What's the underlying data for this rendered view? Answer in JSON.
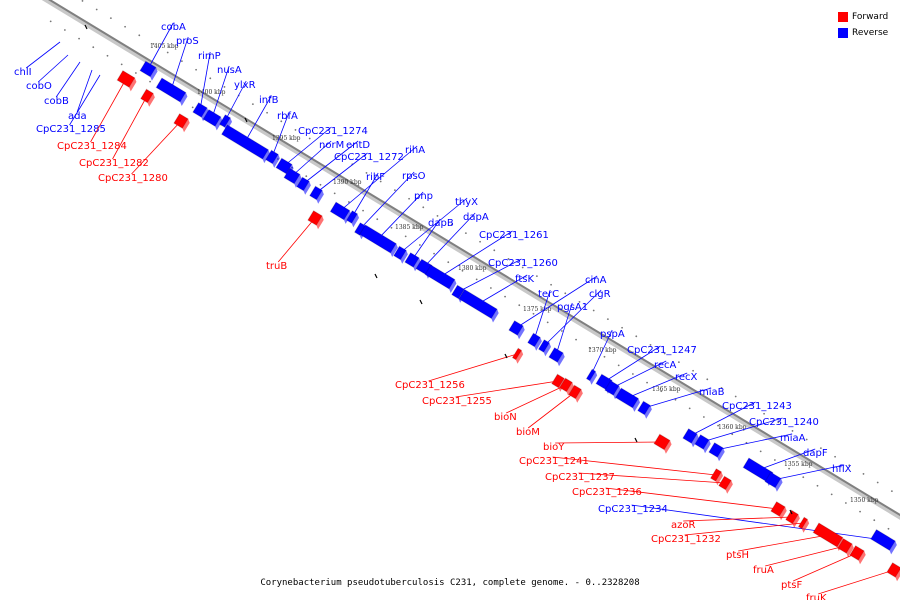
{
  "caption": "Corynebacterium pseudotuberculosis C231, complete genome. - 0..2328208",
  "legend": [
    {
      "label": "Forward",
      "color": "#ff0000"
    },
    {
      "label": "Reverse",
      "color": "#0000ff"
    }
  ],
  "colors": {
    "forward": "#ff0000",
    "reverse": "#0000ff",
    "backbone": "#888888"
  },
  "ticks": [
    "1405 kbp",
    "1400 kbp",
    "1395 kbp",
    "1390 kbp",
    "1385 kbp",
    "1380 kbp",
    "1375 kbp",
    "1370 kbp",
    "1365 kbp",
    "1360 kbp",
    "1355 kbp",
    "1350 kbp"
  ],
  "genes": [
    {
      "name": "cobA",
      "strand": "reverse"
    },
    {
      "name": "proS",
      "strand": "reverse"
    },
    {
      "name": "chlI",
      "strand": "reverse"
    },
    {
      "name": "rimP",
      "strand": "reverse"
    },
    {
      "name": "cobO",
      "strand": "reverse"
    },
    {
      "name": "nusA",
      "strand": "reverse"
    },
    {
      "name": "cobB",
      "strand": "reverse"
    },
    {
      "name": "ylxR",
      "strand": "reverse"
    },
    {
      "name": "ada",
      "strand": "reverse"
    },
    {
      "name": "infB",
      "strand": "reverse"
    },
    {
      "name": "CpC231_1285",
      "strand": "reverse"
    },
    {
      "name": "rbfA",
      "strand": "reverse"
    },
    {
      "name": "CpC231_1284",
      "strand": "forward"
    },
    {
      "name": "CpC231_1274",
      "strand": "reverse"
    },
    {
      "name": "CpC231_1282",
      "strand": "forward"
    },
    {
      "name": "norM",
      "strand": "reverse"
    },
    {
      "name": "entD",
      "strand": "reverse"
    },
    {
      "name": "CpC231_1280",
      "strand": "forward"
    },
    {
      "name": "CpC231_1272",
      "strand": "reverse"
    },
    {
      "name": "rihA",
      "strand": "reverse"
    },
    {
      "name": "ribF",
      "strand": "reverse"
    },
    {
      "name": "rpsO",
      "strand": "reverse"
    },
    {
      "name": "pnp",
      "strand": "reverse"
    },
    {
      "name": "thyX",
      "strand": "reverse"
    },
    {
      "name": "dapB",
      "strand": "reverse"
    },
    {
      "name": "dapA",
      "strand": "reverse"
    },
    {
      "name": "truB",
      "strand": "forward"
    },
    {
      "name": "CpC231_1261",
      "strand": "reverse"
    },
    {
      "name": "CpC231_1260",
      "strand": "reverse"
    },
    {
      "name": "ftsK",
      "strand": "reverse"
    },
    {
      "name": "cinA",
      "strand": "reverse"
    },
    {
      "name": "terC",
      "strand": "reverse"
    },
    {
      "name": "clgR",
      "strand": "reverse"
    },
    {
      "name": "pgsA1",
      "strand": "reverse"
    },
    {
      "name": "pspA",
      "strand": "reverse"
    },
    {
      "name": "CpC231_1247",
      "strand": "reverse"
    },
    {
      "name": "CpC231_1256",
      "strand": "forward"
    },
    {
      "name": "recA",
      "strand": "reverse"
    },
    {
      "name": "CpC231_1255",
      "strand": "forward"
    },
    {
      "name": "recX",
      "strand": "reverse"
    },
    {
      "name": "miaB",
      "strand": "reverse"
    },
    {
      "name": "bioN",
      "strand": "forward"
    },
    {
      "name": "CpC231_1243",
      "strand": "reverse"
    },
    {
      "name": "CpC231_1240",
      "strand": "reverse"
    },
    {
      "name": "bioM",
      "strand": "forward"
    },
    {
      "name": "miaA",
      "strand": "reverse"
    },
    {
      "name": "bioY",
      "strand": "forward"
    },
    {
      "name": "dapF",
      "strand": "reverse"
    },
    {
      "name": "CpC231_1241",
      "strand": "forward"
    },
    {
      "name": "hflX",
      "strand": "reverse"
    },
    {
      "name": "CpC231_1237",
      "strand": "forward"
    },
    {
      "name": "CpC231_1236",
      "strand": "forward"
    },
    {
      "name": "CpC231_1234",
      "strand": "reverse"
    },
    {
      "name": "azoR",
      "strand": "forward"
    },
    {
      "name": "CpC231_1232",
      "strand": "forward"
    },
    {
      "name": "ptsH",
      "strand": "forward"
    },
    {
      "name": "fruA",
      "strand": "forward"
    },
    {
      "name": "ptsF",
      "strand": "forward"
    },
    {
      "name": "fruK",
      "strand": "forward"
    }
  ]
}
